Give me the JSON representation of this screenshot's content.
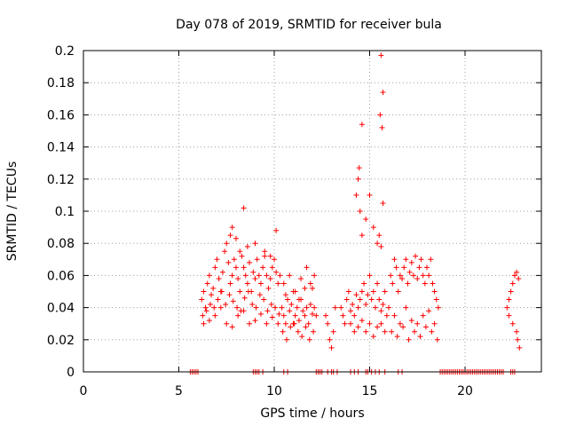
{
  "chart_data": {
    "type": "scatter",
    "title": "Day 078 of 2019, SRMTID for receiver bula",
    "xlabel": "GPS time / hours",
    "ylabel": "SRMTID / TECUs",
    "xlim": [
      0,
      24
    ],
    "ylim": [
      0,
      0.2
    ],
    "xticks": [
      0,
      5,
      10,
      15,
      20
    ],
    "xtick_labels": [
      "0",
      "5",
      "10",
      "15",
      "20"
    ],
    "yticks": [
      0,
      0.02,
      0.04,
      0.06,
      0.08,
      0.1,
      0.12,
      0.14,
      0.16,
      0.18,
      0.2
    ],
    "ytick_labels": [
      "0",
      "0.02",
      "0.04",
      "0.06",
      "0.08",
      "0.1",
      "0.12",
      "0.14",
      "0.16",
      "0.18",
      "0.2"
    ],
    "grid": true,
    "marker": "+",
    "marker_color": "#ff0000",
    "series": [
      {
        "name": "SRMTID",
        "x": [
          5.6,
          5.7,
          5.8,
          5.9,
          6.0,
          8.9,
          9.0,
          9.1,
          9.2,
          9.4,
          10.5,
          10.7,
          12.2,
          12.3,
          12.4,
          12.5,
          12.8,
          13.0,
          13.1,
          13.3,
          14.0,
          14.2,
          14.4,
          14.8,
          14.9,
          15.1,
          15.3,
          15.5,
          15.8,
          16.5,
          16.7,
          18.7,
          18.8,
          18.9,
          19.0,
          19.1,
          19.2,
          19.3,
          19.4,
          19.5,
          19.6,
          19.7,
          19.8,
          19.9,
          20.0,
          20.1,
          20.2,
          20.3,
          20.4,
          20.5,
          20.6,
          20.7,
          20.8,
          20.9,
          21.0,
          21.1,
          21.2,
          21.3,
          21.4,
          21.5,
          21.6,
          21.7,
          21.8,
          21.9,
          22.0,
          22.4,
          22.5,
          22.6,
          6.2,
          6.3,
          6.4,
          6.5,
          6.6,
          6.7,
          6.8,
          6.9,
          7.0,
          7.1,
          7.2,
          7.3,
          7.4,
          7.5,
          7.6,
          7.7,
          7.8,
          7.9,
          8.0,
          8.1,
          8.2,
          8.3,
          8.4,
          8.5,
          8.6,
          8.7,
          8.8,
          8.9,
          9.0,
          9.1,
          9.2,
          9.3,
          9.4,
          9.5,
          9.6,
          9.7,
          9.8,
          9.9,
          10.0,
          10.1,
          10.2,
          10.3,
          6.25,
          6.45,
          6.65,
          6.85,
          7.05,
          7.25,
          7.45,
          7.65,
          7.85,
          8.05,
          8.25,
          8.45,
          8.65,
          8.85,
          9.05,
          9.25,
          9.45,
          9.65,
          9.85,
          10.05,
          10.25,
          6.3,
          6.6,
          6.9,
          7.2,
          7.5,
          7.8,
          8.1,
          8.4,
          8.7,
          9.0,
          9.3,
          9.6,
          9.9,
          10.2,
          7.7,
          7.8,
          8.0,
          8.2,
          8.4,
          8.6,
          9.0,
          9.5,
          9.8,
          10.1,
          10.4,
          10.5,
          10.6,
          10.7,
          10.8,
          10.9,
          11.0,
          11.1,
          11.2,
          11.3,
          11.4,
          11.5,
          11.6,
          11.7,
          11.8,
          11.9,
          12.0,
          12.1,
          12.2,
          10.45,
          10.65,
          10.85,
          11.05,
          11.25,
          11.45,
          11.65,
          11.85,
          12.05,
          10.5,
          10.8,
          11.1,
          11.4,
          11.7,
          12.0,
          10.6,
          11.0,
          11.3,
          11.6,
          11.9,
          12.1,
          12.7,
          12.8,
          12.9,
          13.0,
          13.1,
          13.2,
          13.5,
          13.6,
          13.7,
          13.8,
          13.9,
          14.0,
          14.1,
          14.2,
          14.3,
          14.4,
          14.5,
          14.6,
          14.7,
          14.8,
          14.9,
          15.0,
          15.1,
          15.2,
          15.3,
          15.4,
          15.5,
          15.6,
          15.7,
          15.8,
          15.9,
          16.0,
          14.0,
          14.2,
          14.4,
          14.6,
          14.8,
          15.0,
          15.2,
          15.4,
          15.6,
          15.8,
          14.3,
          14.4,
          14.5,
          14.6,
          14.8,
          15.0,
          15.2,
          15.4,
          15.5,
          15.6,
          15.7,
          14.45,
          14.6,
          15.55,
          15.6,
          15.65,
          15.7,
          16.1,
          16.2,
          16.3,
          16.4,
          16.5,
          16.6,
          16.7,
          16.8,
          16.9,
          17.0,
          17.1,
          17.2,
          17.3,
          17.4,
          17.5,
          17.6,
          17.7,
          17.8,
          17.9,
          18.0,
          18.1,
          18.2,
          18.3,
          18.4,
          18.5,
          18.6,
          16.3,
          16.6,
          16.9,
          17.2,
          17.5,
          17.8,
          18.1,
          18.4,
          16.15,
          16.45,
          16.75,
          17.05,
          17.35,
          17.65,
          17.95,
          18.25,
          18.55,
          22.2,
          22.3,
          22.4,
          22.5,
          22.6,
          22.7,
          22.8,
          22.3,
          22.5,
          22.7,
          22.75,
          22.85
        ],
        "y": [
          0,
          0,
          0,
          0,
          0,
          0,
          0,
          0,
          0,
          0,
          0,
          0,
          0,
          0,
          0,
          0,
          0,
          0,
          0,
          0,
          0,
          0,
          0,
          0,
          0,
          0,
          0,
          0,
          0,
          0,
          0,
          0,
          0,
          0,
          0,
          0,
          0,
          0,
          0,
          0,
          0,
          0,
          0,
          0,
          0,
          0,
          0,
          0,
          0,
          0,
          0,
          0,
          0,
          0,
          0,
          0,
          0,
          0,
          0,
          0,
          0,
          0,
          0,
          0,
          0,
          0,
          0,
          0,
          0.045,
          0.05,
          0.04,
          0.055,
          0.06,
          0.048,
          0.052,
          0.065,
          0.07,
          0.058,
          0.05,
          0.062,
          0.075,
          0.08,
          0.068,
          0.055,
          0.06,
          0.07,
          0.065,
          0.058,
          0.05,
          0.072,
          0.065,
          0.06,
          0.055,
          0.068,
          0.05,
          0.062,
          0.058,
          0.07,
          0.06,
          0.055,
          0.065,
          0.072,
          0.06,
          0.052,
          0.058,
          0.065,
          0.07,
          0.062,
          0.055,
          0.06,
          0.035,
          0.038,
          0.042,
          0.04,
          0.045,
          0.05,
          0.042,
          0.048,
          0.044,
          0.04,
          0.038,
          0.046,
          0.05,
          0.042,
          0.04,
          0.048,
          0.045,
          0.038,
          0.042,
          0.04,
          0.036,
          0.03,
          0.032,
          0.035,
          0.04,
          0.03,
          0.028,
          0.035,
          0.038,
          0.03,
          0.032,
          0.036,
          0.03,
          0.034,
          0.03,
          0.085,
          0.09,
          0.083,
          0.075,
          0.102,
          0.078,
          0.08,
          0.075,
          0.072,
          0.088,
          0.04,
          0.035,
          0.03,
          0.045,
          0.038,
          0.042,
          0.03,
          0.035,
          0.04,
          0.032,
          0.045,
          0.038,
          0.035,
          0.04,
          0.03,
          0.042,
          0.036,
          0.04,
          0.035,
          0.025,
          0.02,
          0.028,
          0.03,
          0.025,
          0.022,
          0.028,
          0.02,
          0.025,
          0.055,
          0.06,
          0.05,
          0.058,
          0.065,
          0.052,
          0.048,
          0.05,
          0.045,
          0.052,
          0.055,
          0.06,
          0.035,
          0.03,
          0.02,
          0.015,
          0.025,
          0.04,
          0.04,
          0.035,
          0.03,
          0.045,
          0.05,
          0.038,
          0.042,
          0.035,
          0.048,
          0.04,
          0.045,
          0.05,
          0.055,
          0.042,
          0.048,
          0.06,
          0.045,
          0.05,
          0.04,
          0.055,
          0.045,
          0.038,
          0.042,
          0.05,
          0.035,
          0.04,
          0.03,
          0.025,
          0.028,
          0.032,
          0.025,
          0.03,
          0.022,
          0.028,
          0.03,
          0.025,
          0.11,
          0.12,
          0.1,
          0.085,
          0.095,
          0.11,
          0.09,
          0.08,
          0.085,
          0.078,
          0.105,
          0.127,
          0.154,
          0.16,
          0.197,
          0.152,
          0.174,
          0.06,
          0.055,
          0.07,
          0.065,
          0.05,
          0.06,
          0.058,
          0.065,
          0.07,
          0.055,
          0.062,
          0.068,
          0.06,
          0.072,
          0.058,
          0.065,
          0.07,
          0.06,
          0.055,
          0.065,
          0.06,
          0.07,
          0.055,
          0.05,
          0.045,
          0.04,
          0.035,
          0.03,
          0.04,
          0.032,
          0.03,
          0.035,
          0.038,
          0.03,
          0.025,
          0.022,
          0.028,
          0.02,
          0.025,
          0.022,
          0.028,
          0.025,
          0.02,
          0.04,
          0.045,
          0.05,
          0.055,
          0.06,
          0.062,
          0.058,
          0.035,
          0.03,
          0.025,
          0.02,
          0.015
        ]
      }
    ]
  }
}
